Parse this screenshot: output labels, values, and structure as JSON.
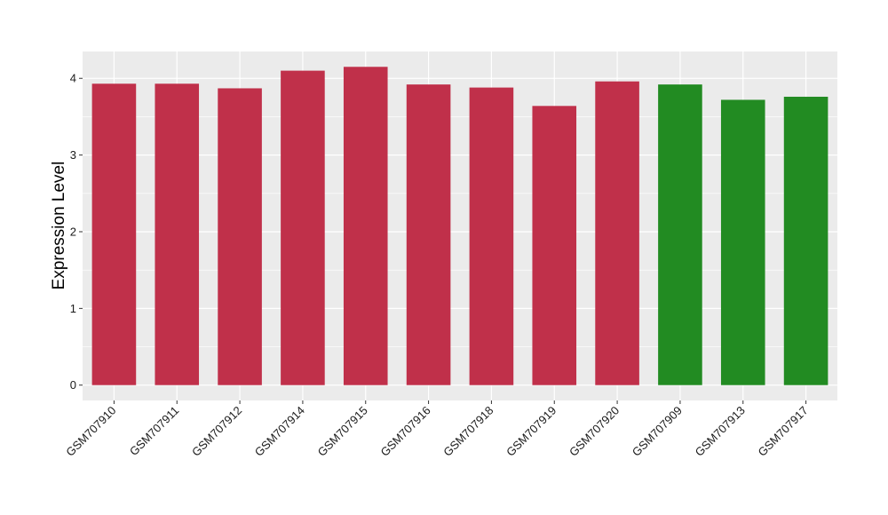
{
  "chart_data": {
    "type": "bar",
    "title": "",
    "xlabel": "",
    "ylabel": "Expression Level",
    "ylim": [
      -0.2,
      4.35
    ],
    "yticks": [
      0,
      1,
      2,
      3,
      4
    ],
    "grid": true,
    "legend": "none",
    "categories": [
      "GSM707910",
      "GSM707911",
      "GSM707912",
      "GSM707914",
      "GSM707915",
      "GSM707916",
      "GSM707918",
      "GSM707919",
      "GSM707920",
      "GSM707909",
      "GSM707913",
      "GSM707917"
    ],
    "values": [
      3.93,
      3.93,
      3.87,
      4.1,
      4.15,
      3.92,
      3.88,
      3.64,
      3.96,
      3.92,
      3.72,
      3.76
    ],
    "groups": [
      "red",
      "red",
      "red",
      "red",
      "red",
      "red",
      "red",
      "red",
      "red",
      "green",
      "green",
      "green"
    ]
  },
  "colors": {
    "red": "#c0304a",
    "green": "#228b22",
    "panel": "#ebebeb",
    "grid": "#ffffff"
  }
}
